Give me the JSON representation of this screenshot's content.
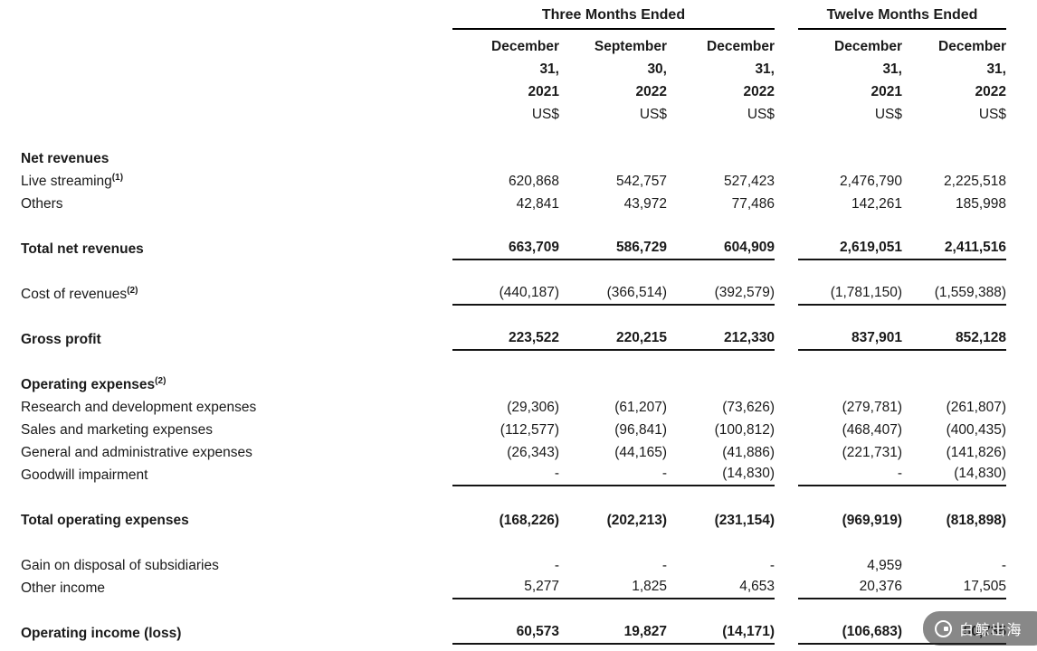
{
  "header": {
    "group1": "Three Months Ended",
    "group2": "Twelve Months Ended",
    "columns": [
      {
        "l1": "December",
        "l2": "31,",
        "l3": "2021",
        "unit": "US$"
      },
      {
        "l1": "September",
        "l2": "30,",
        "l3": "2022",
        "unit": "US$"
      },
      {
        "l1": "December",
        "l2": "31,",
        "l3": "2022",
        "unit": "US$"
      },
      {
        "l1": "December",
        "l2": "31,",
        "l3": "2021",
        "unit": "US$"
      },
      {
        "l1": "December",
        "l2": "31,",
        "l3": "2022",
        "unit": "US$"
      }
    ]
  },
  "rows": [
    {
      "label": "Net revenues",
      "sup": "",
      "values": null
    },
    {
      "label": "Live streaming",
      "sup": "(1)",
      "values": [
        "620,868",
        "542,757",
        "527,423",
        "2,476,790",
        "2,225,518"
      ]
    },
    {
      "label": "Others",
      "sup": "",
      "values": [
        "42,841",
        "43,972",
        "77,486",
        "142,261",
        "185,998"
      ]
    },
    {
      "label": "Total net revenues",
      "sup": "",
      "values": [
        "663,709",
        "586,729",
        "604,909",
        "2,619,051",
        "2,411,516"
      ]
    },
    {
      "label": "Cost of revenues",
      "sup": "(2)",
      "values": [
        "(440,187)",
        "(366,514)",
        "(392,579)",
        "(1,781,150)",
        "(1,559,388)"
      ]
    },
    {
      "label": "Gross profit",
      "sup": "",
      "values": [
        "223,522",
        "220,215",
        "212,330",
        "837,901",
        "852,128"
      ]
    },
    {
      "label": "Operating expenses",
      "sup": "(2)",
      "values": null
    },
    {
      "label": "Research and development expenses",
      "sup": "",
      "values": [
        "(29,306)",
        "(61,207)",
        "(73,626)",
        "(279,781)",
        "(261,807)"
      ]
    },
    {
      "label": "Sales and marketing expenses",
      "sup": "",
      "values": [
        "(112,577)",
        "(96,841)",
        "(100,812)",
        "(468,407)",
        "(400,435)"
      ]
    },
    {
      "label": "General and administrative expenses",
      "sup": "",
      "values": [
        "(26,343)",
        "(44,165)",
        "(41,886)",
        "(221,731)",
        "(141,826)"
      ]
    },
    {
      "label": "Goodwill impairment",
      "sup": "",
      "values": [
        "-",
        "-",
        "(14,830)",
        "-",
        "(14,830)"
      ]
    },
    {
      "label": "Total operating expenses",
      "sup": "",
      "values": [
        "(168,226)",
        "(202,213)",
        "(231,154)",
        "(969,919)",
        "(818,898)"
      ]
    },
    {
      "label": "Gain on disposal of subsidiaries",
      "sup": "",
      "values": [
        "-",
        "-",
        "-",
        "4,959",
        "-"
      ]
    },
    {
      "label": "Other income",
      "sup": "",
      "values": [
        "5,277",
        "1,825",
        "4,653",
        "20,376",
        "17,505"
      ]
    },
    {
      "label": "Operating income (loss)",
      "sup": "",
      "values": [
        "60,573",
        "19,827",
        "(14,171)",
        "(106,683)",
        "50,735"
      ]
    }
  ],
  "watermark": {
    "text": "白鲸出海"
  }
}
